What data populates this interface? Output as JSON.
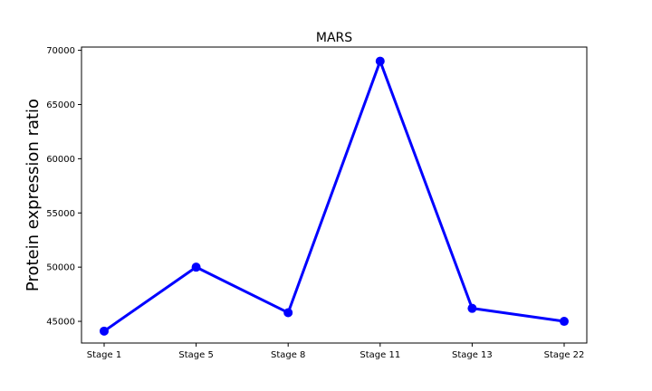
{
  "chart_data": {
    "type": "line",
    "title": "MARS",
    "xlabel": "",
    "ylabel": "Protein expression ratio",
    "categories": [
      "Stage 1",
      "Stage 5",
      "Stage 8",
      "Stage 11",
      "Stage 13",
      "Stage 22"
    ],
    "series": [
      {
        "values": [
          44100,
          50000,
          45800,
          69000,
          46200,
          45000
        ],
        "color": "#0000ff"
      }
    ],
    "ylim": [
      43000,
      70300
    ],
    "yticks": [
      45000,
      50000,
      55000,
      60000,
      65000,
      70000
    ],
    "grid": false,
    "legend": "none"
  }
}
